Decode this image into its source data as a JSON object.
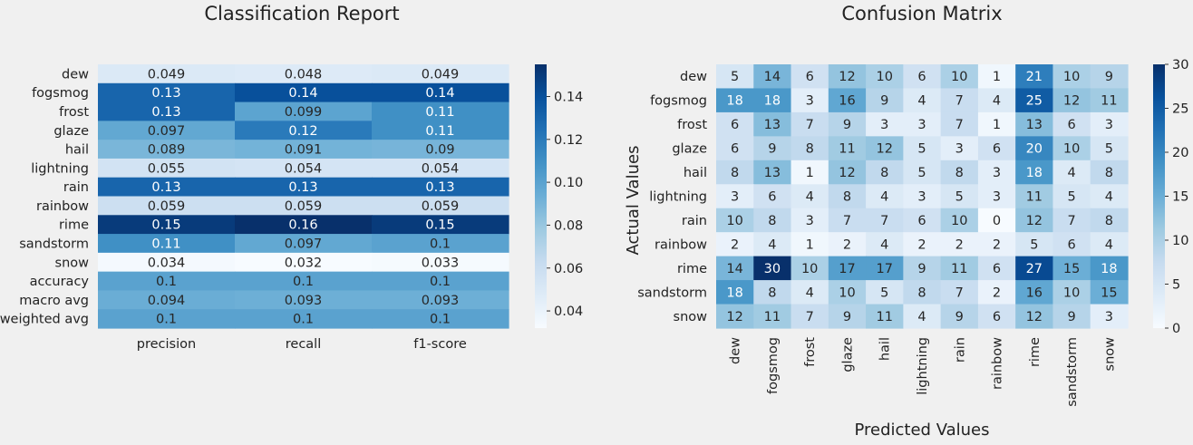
{
  "chart_data": [
    {
      "type": "heatmap",
      "title": "Classification Report",
      "rows": [
        "dew",
        "fogsmog",
        "frost",
        "glaze",
        "hail",
        "lightning",
        "rain",
        "rainbow",
        "rime",
        "sandstorm",
        "snow",
        "accuracy",
        "macro avg",
        "weighted avg"
      ],
      "columns": [
        "precision",
        "recall",
        "f1-score"
      ],
      "values": [
        [
          0.049,
          0.048,
          0.049
        ],
        [
          0.13,
          0.14,
          0.14
        ],
        [
          0.13,
          0.099,
          0.11
        ],
        [
          0.097,
          0.12,
          0.11
        ],
        [
          0.089,
          0.091,
          0.09
        ],
        [
          0.055,
          0.054,
          0.054
        ],
        [
          0.13,
          0.13,
          0.13
        ],
        [
          0.059,
          0.059,
          0.059
        ],
        [
          0.15,
          0.16,
          0.15
        ],
        [
          0.11,
          0.097,
          0.1
        ],
        [
          0.034,
          0.032,
          0.033
        ],
        [
          0.1,
          0.1,
          0.1
        ],
        [
          0.094,
          0.093,
          0.093
        ],
        [
          0.1,
          0.1,
          0.1
        ]
      ],
      "color_range": [
        0.032,
        0.155
      ],
      "colorbar_ticks": [
        "0.04",
        "0.06",
        "0.08",
        "0.10",
        "0.12",
        "0.14"
      ],
      "colormap": "Blues",
      "xlabel": "",
      "ylabel": ""
    },
    {
      "type": "heatmap",
      "title": "Confusion Matrix",
      "rows": [
        "dew",
        "fogsmog",
        "frost",
        "glaze",
        "hail",
        "lightning",
        "rain",
        "rainbow",
        "rime",
        "sandstorm",
        "snow"
      ],
      "columns": [
        "dew",
        "fogsmog",
        "frost",
        "glaze",
        "hail",
        "lightning",
        "rain",
        "rainbow",
        "rime",
        "sandstorm",
        "snow"
      ],
      "values": [
        [
          5,
          14,
          6,
          12,
          10,
          6,
          10,
          1,
          21,
          10,
          9
        ],
        [
          18,
          18,
          3,
          16,
          9,
          4,
          7,
          4,
          25,
          12,
          11
        ],
        [
          6,
          13,
          7,
          9,
          3,
          3,
          7,
          1,
          13,
          6,
          3
        ],
        [
          6,
          9,
          8,
          11,
          12,
          5,
          3,
          6,
          20,
          10,
          5
        ],
        [
          8,
          13,
          1,
          12,
          8,
          5,
          8,
          3,
          18,
          4,
          8
        ],
        [
          3,
          6,
          4,
          8,
          4,
          3,
          5,
          3,
          11,
          5,
          4
        ],
        [
          10,
          8,
          3,
          7,
          7,
          6,
          10,
          0,
          12,
          7,
          8
        ],
        [
          2,
          4,
          1,
          2,
          4,
          2,
          2,
          2,
          5,
          6,
          4
        ],
        [
          14,
          30,
          10,
          17,
          17,
          9,
          11,
          6,
          27,
          15,
          18
        ],
        [
          18,
          8,
          4,
          10,
          5,
          8,
          7,
          2,
          16,
          10,
          15
        ],
        [
          12,
          11,
          7,
          9,
          11,
          4,
          9,
          6,
          12,
          9,
          3
        ]
      ],
      "color_range": [
        0,
        30
      ],
      "colorbar_ticks": [
        "0",
        "5",
        "10",
        "15",
        "20",
        "25",
        "30"
      ],
      "colormap": "Blues",
      "xlabel": "Predicted Values",
      "ylabel": "Actual Values"
    }
  ]
}
